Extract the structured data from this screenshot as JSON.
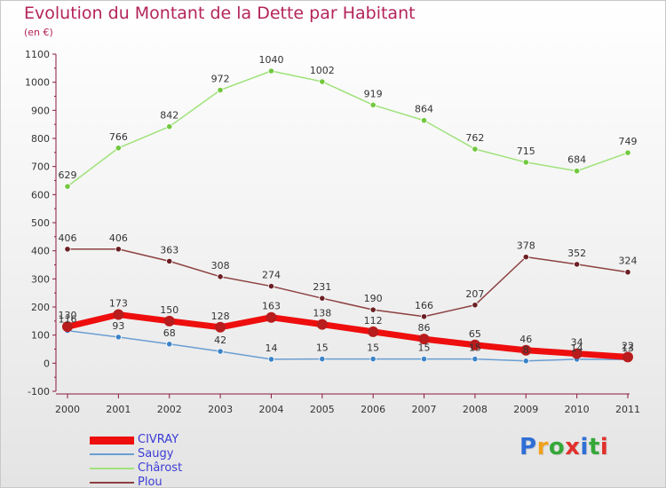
{
  "title": "Evolution du Montant de la Dette par Habitant",
  "subtitle": "(en €)",
  "logo": {
    "text": "Proxiti",
    "letters": [
      {
        "ch": "P",
        "color": "#2f6fd6"
      },
      {
        "ch": "r",
        "color": "#f0a11c"
      },
      {
        "ch": "o",
        "color": "#35a83a"
      },
      {
        "ch": "x",
        "color": "#e0312c"
      },
      {
        "ch": "i",
        "color": "#2f6fd6"
      },
      {
        "ch": "t",
        "color": "#35a83a"
      },
      {
        "ch": "i",
        "color": "#e0312c"
      }
    ]
  },
  "chart_data": {
    "type": "line",
    "title": "Evolution du Montant de la Dette par Habitant",
    "ylabel": "(en €)",
    "xlabel": "",
    "x": [
      "2000",
      "2001",
      "2002",
      "2003",
      "2004",
      "2005",
      "2006",
      "2007",
      "2008",
      "2009",
      "2010",
      "2011"
    ],
    "ylim": [
      -100,
      1100
    ],
    "yticks": [
      -100,
      0,
      100,
      200,
      300,
      400,
      500,
      600,
      700,
      800,
      900,
      1000,
      1100
    ],
    "grid": false,
    "legend_position": "bottom-left",
    "series": [
      {
        "name": "CIVRAY",
        "color": "#ee0e0e",
        "marker": "#b81c1c",
        "values": [
          130,
          173,
          150,
          128,
          163,
          138,
          112,
          86,
          65,
          46,
          34,
          22
        ]
      },
      {
        "name": "Saugy",
        "color": "#6a9ed2",
        "marker": "#3c83c8",
        "values": [
          116,
          93,
          68,
          42,
          14,
          15,
          15,
          15,
          15,
          8,
          14,
          13
        ]
      },
      {
        "name": "Chârost",
        "color": "#9fe27a",
        "marker": "#72c83f",
        "values": [
          629,
          766,
          842,
          972,
          1040,
          1002,
          919,
          864,
          762,
          715,
          684,
          749
        ]
      },
      {
        "name": "Plou",
        "color": "#8d4040",
        "marker": "#6b1f24",
        "values": [
          406,
          406,
          363,
          308,
          274,
          231,
          190,
          166,
          207,
          378,
          352,
          324
        ]
      }
    ],
    "point_labels": {
      "CIVRAY": [
        "130",
        "173",
        "150",
        "128",
        "163",
        "138",
        "112",
        "86",
        "65",
        "46",
        "34",
        "22"
      ],
      "Saugy": [
        "116",
        "93",
        "68",
        "42",
        "14",
        "15",
        "15",
        "15",
        "15",
        "8",
        "14",
        "13"
      ],
      "Chârost": [
        "629",
        "766",
        "842",
        "972",
        "1040",
        "1002",
        "919",
        "864",
        "762",
        "715",
        "684",
        "749"
      ],
      "Plou": [
        "406",
        "406",
        "363",
        "308",
        "274",
        "231",
        "190",
        "166",
        "207",
        "378",
        "352",
        "324"
      ]
    }
  }
}
